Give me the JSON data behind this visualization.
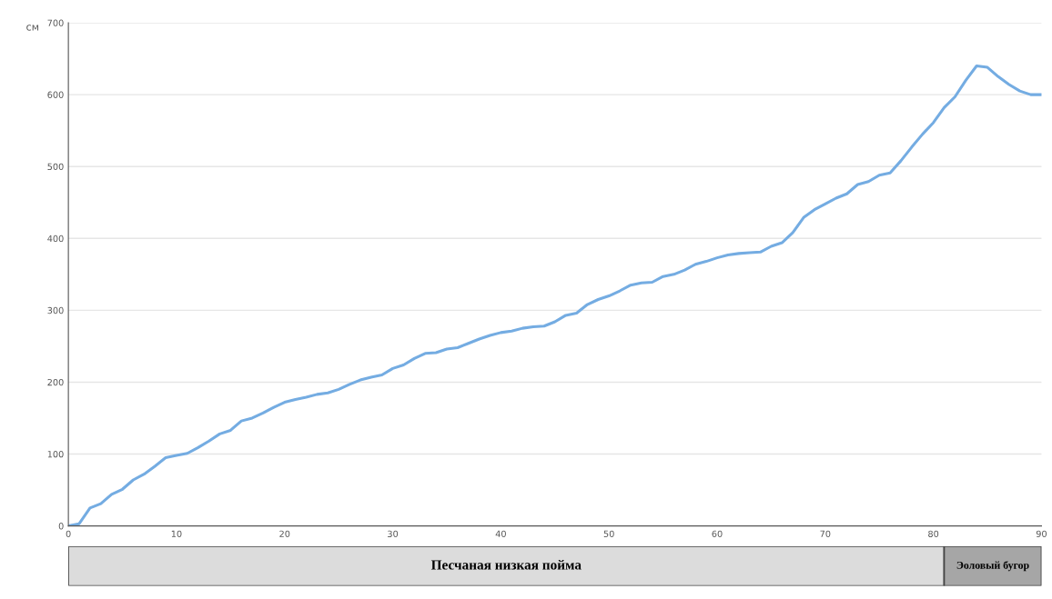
{
  "chart_data": [
    {
      "type": "line",
      "ylabel": "см",
      "x": [
        0,
        1,
        2,
        3,
        4,
        5,
        6,
        7,
        8,
        9,
        10,
        11,
        12,
        13,
        14,
        15,
        16,
        17,
        18,
        19,
        20,
        21,
        22,
        23,
        24,
        25,
        26,
        27,
        28,
        29,
        30,
        31,
        32,
        33,
        34,
        35,
        36,
        37,
        38,
        39,
        40,
        41,
        42,
        43,
        44,
        45,
        46,
        47,
        48,
        49,
        50,
        51,
        52,
        53,
        54,
        55,
        56,
        57,
        58,
        59,
        60,
        61,
        62,
        63,
        64,
        65,
        66,
        67,
        68,
        69,
        70,
        71,
        72,
        73,
        74,
        75,
        76,
        77,
        78,
        79,
        80,
        81,
        82,
        83,
        84,
        85,
        86,
        87,
        88,
        89,
        90
      ],
      "series": [
        {
          "color": "#74ace2",
          "values": [
            0,
            3,
            25,
            31,
            44,
            51,
            64,
            72,
            83,
            95,
            98,
            101,
            109,
            118,
            128,
            133,
            146,
            150,
            157,
            165,
            172,
            176,
            179,
            183,
            185,
            190,
            197,
            203,
            207,
            210,
            219,
            224,
            233,
            240,
            241,
            246,
            248,
            254,
            260,
            265,
            269,
            271,
            275,
            277,
            278,
            284,
            293,
            296,
            308,
            315,
            320,
            327,
            335,
            338,
            339,
            347,
            350,
            356,
            364,
            368,
            373,
            377,
            379,
            380,
            381,
            389,
            394,
            408,
            429,
            440,
            448,
            456,
            462,
            475,
            479,
            488,
            491,
            508,
            527,
            545,
            561,
            582,
            597,
            620,
            640,
            638,
            625,
            614,
            605,
            600,
            600
          ]
        }
      ],
      "xlim": [
        0,
        90
      ],
      "xticks": [
        0,
        10,
        20,
        30,
        40,
        50,
        60,
        70,
        80,
        90
      ],
      "ylim": [
        0,
        700
      ],
      "yticks": [
        0,
        100,
        200,
        300,
        400,
        500,
        600,
        700
      ],
      "grid": "y",
      "marker": "none",
      "line_style": "solid",
      "legend": false
    },
    {
      "type": "bar",
      "orientation": "horizontal",
      "stacked": true,
      "categories": [
        null
      ],
      "series": [
        {
          "name": "Песчаная низкая пойма",
          "color": "#dcdcdc",
          "values": [
            81
          ]
        },
        {
          "name": "Эоловый бугор",
          "color": "#a6a6a6",
          "values": [
            9
          ]
        }
      ],
      "xlim": [
        0,
        90
      ],
      "tick_labels": false,
      "legend": false
    }
  ]
}
